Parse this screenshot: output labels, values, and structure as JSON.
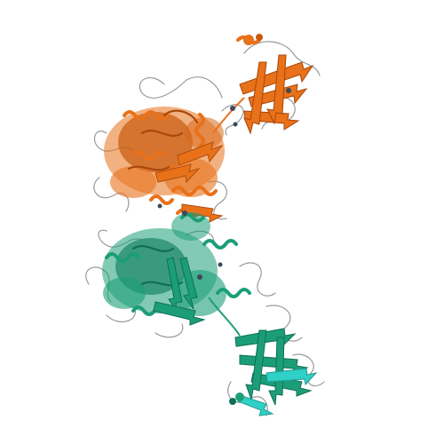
{
  "colors": {
    "background": "#ffffff",
    "chain_a": "#e8711a",
    "chain_a_dark": "#b04d0c",
    "chain_b": "#1b9e77",
    "chain_b_light": "#2fd0c6",
    "chain_b_dark": "#0f6e58",
    "coil": "#8a8a8a",
    "ligand": "#3b4a5a"
  },
  "icons": [
    "protein-structure"
  ]
}
